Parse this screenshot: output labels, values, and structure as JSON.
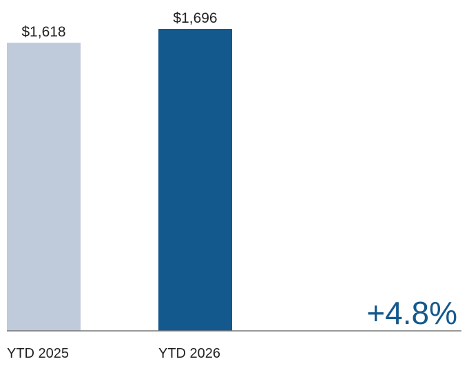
{
  "chart_data": {
    "type": "bar",
    "categories": [
      "YTD 2025",
      "YTD 2026"
    ],
    "values": [
      1618,
      1696
    ],
    "value_labels": [
      "$1,618",
      "$1,696"
    ],
    "colors": [
      "#bfcadb",
      "#14598d"
    ],
    "ylim": [
      0,
      1696
    ],
    "grid": false,
    "legend": "none",
    "annotation": "+4.8%"
  }
}
